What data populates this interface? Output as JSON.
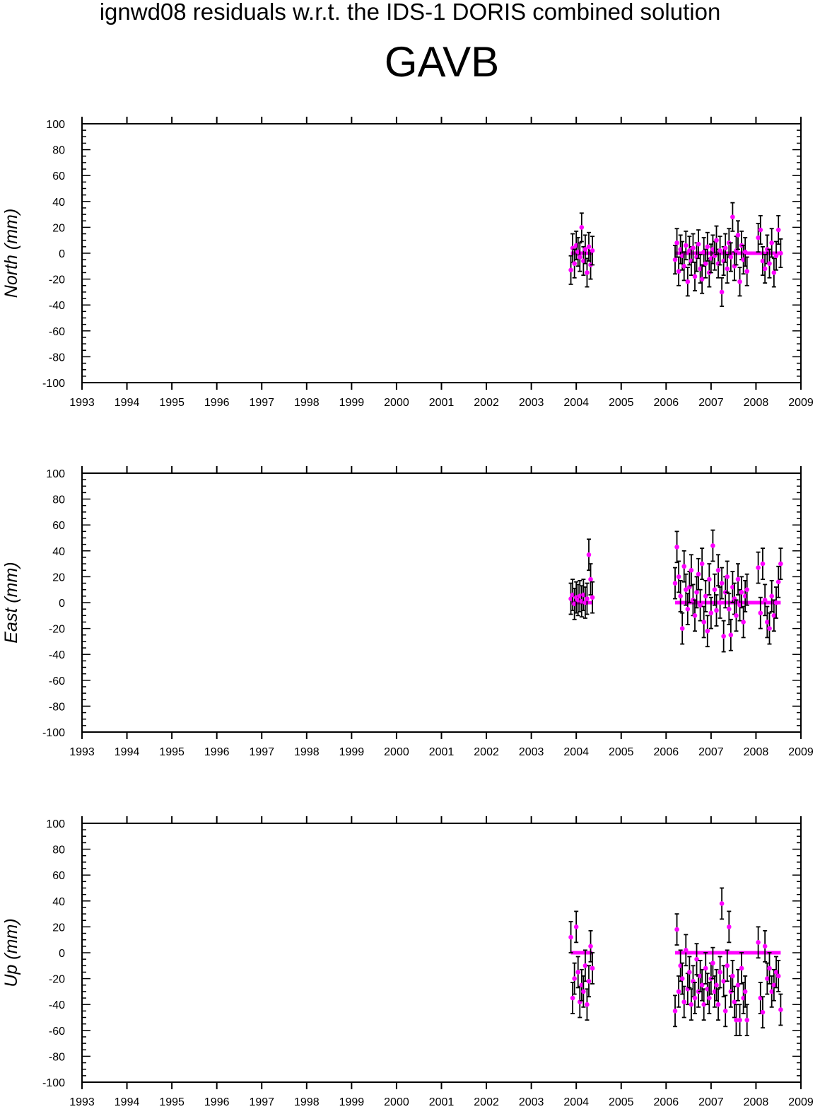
{
  "title": "ignwd08 residuals w.r.t. the IDS-1 DORIS combined solution",
  "station": "GAVB",
  "colors": {
    "point": "#ff00ff",
    "errorbar": "#000000",
    "axis": "#000000"
  },
  "chart_data": [
    {
      "type": "scatter",
      "name": "north-panel",
      "ylabel": "North (mm)",
      "xlim": [
        1993,
        2009
      ],
      "ylim": [
        -100,
        100
      ],
      "xticks": [
        "1993",
        "1994",
        "1995",
        "1996",
        "1997",
        "1998",
        "1999",
        "2000",
        "2001",
        "2002",
        "2003",
        "2004",
        "2005",
        "2006",
        "2007",
        "2008",
        "2009"
      ],
      "yticks": [
        "100",
        "80",
        "60",
        "40",
        "20",
        "0",
        "-20",
        "-40",
        "-60",
        "-80",
        "-100"
      ],
      "error": 11,
      "x": [
        2003.88,
        2003.92,
        2003.96,
        2004.0,
        2004.04,
        2004.08,
        2004.12,
        2004.16,
        2004.2,
        2004.24,
        2004.28,
        2004.32,
        2004.36,
        2006.2,
        2006.24,
        2006.28,
        2006.32,
        2006.36,
        2006.4,
        2006.44,
        2006.48,
        2006.52,
        2006.56,
        2006.6,
        2006.64,
        2006.68,
        2006.72,
        2006.76,
        2006.8,
        2006.84,
        2006.88,
        2006.92,
        2006.96,
        2007.0,
        2007.04,
        2007.08,
        2007.12,
        2007.16,
        2007.2,
        2007.24,
        2007.28,
        2007.32,
        2007.36,
        2007.4,
        2007.44,
        2007.48,
        2007.52,
        2007.56,
        2007.6,
        2007.64,
        2007.68,
        2007.72,
        2007.76,
        2007.8,
        2008.05,
        2008.1,
        2008.15,
        2008.2,
        2008.25,
        2008.3,
        2008.35,
        2008.4,
        2008.45,
        2008.5,
        2008.55
      ],
      "y": [
        -13,
        4,
        -8,
        6,
        1,
        -3,
        20,
        -6,
        3,
        -15,
        5,
        -9,
        2,
        -5,
        8,
        -14,
        3,
        -2,
        -10,
        6,
        -22,
        2,
        -6,
        4,
        -18,
        -3,
        7,
        -12,
        -20,
        1,
        -8,
        5,
        -15,
        -4,
        3,
        -2,
        10,
        -8,
        2,
        -30,
        -6,
        4,
        -12,
        8,
        -3,
        28,
        -10,
        2,
        14,
        -22,
        6,
        -5,
        1,
        -14,
        12,
        18,
        -6,
        -12,
        3,
        -8,
        8,
        -15,
        -2,
        18,
        0
      ]
    },
    {
      "type": "scatter",
      "name": "east-panel",
      "ylabel": "East (mm)",
      "xlim": [
        1993,
        2009
      ],
      "ylim": [
        -100,
        100
      ],
      "xticks": [
        "1993",
        "1994",
        "1995",
        "1996",
        "1997",
        "1998",
        "1999",
        "2000",
        "2001",
        "2002",
        "2003",
        "2004",
        "2005",
        "2006",
        "2007",
        "2008",
        "2009"
      ],
      "yticks": [
        "100",
        "80",
        "60",
        "40",
        "20",
        "0",
        "-20",
        "-40",
        "-60",
        "-80",
        "-100"
      ],
      "error": 12,
      "x": [
        2003.88,
        2003.92,
        2003.96,
        2004.0,
        2004.04,
        2004.08,
        2004.12,
        2004.16,
        2004.2,
        2004.24,
        2004.28,
        2004.32,
        2004.36,
        2006.2,
        2006.24,
        2006.28,
        2006.32,
        2006.36,
        2006.4,
        2006.44,
        2006.48,
        2006.52,
        2006.56,
        2006.6,
        2006.64,
        2006.68,
        2006.72,
        2006.76,
        2006.8,
        2006.84,
        2006.88,
        2006.92,
        2006.96,
        2007.0,
        2007.04,
        2007.08,
        2007.12,
        2007.16,
        2007.2,
        2007.24,
        2007.28,
        2007.32,
        2007.36,
        2007.4,
        2007.44,
        2007.48,
        2007.52,
        2007.56,
        2007.6,
        2007.64,
        2007.68,
        2007.72,
        2007.76,
        2007.8,
        2008.05,
        2008.1,
        2008.15,
        2008.2,
        2008.25,
        2008.3,
        2008.35,
        2008.4,
        2008.45,
        2008.5,
        2008.55
      ],
      "y": [
        3,
        6,
        -1,
        4,
        2,
        5,
        1,
        6,
        0,
        3,
        37,
        18,
        4,
        15,
        43,
        20,
        5,
        -20,
        28,
        10,
        -5,
        12,
        25,
        2,
        -10,
        8,
        22,
        -2,
        30,
        -15,
        5,
        -22,
        18,
        -8,
        44,
        10,
        -6,
        25,
        0,
        15,
        -26,
        8,
        20,
        -5,
        -25,
        12,
        3,
        -10,
        18,
        -2,
        8,
        -15,
        5,
        10,
        27,
        -8,
        30,
        2,
        -15,
        -20,
        5,
        -10,
        0,
        16,
        30
      ]
    },
    {
      "type": "scatter",
      "name": "up-panel",
      "ylabel": "Up (mm)",
      "xlim": [
        1993,
        2009
      ],
      "ylim": [
        -100,
        100
      ],
      "xticks": [
        "1993",
        "1994",
        "1995",
        "1996",
        "1997",
        "1998",
        "1999",
        "2000",
        "2001",
        "2002",
        "2003",
        "2004",
        "2005",
        "2006",
        "2007",
        "2008",
        "2009"
      ],
      "yticks": [
        "100",
        "80",
        "60",
        "40",
        "20",
        "0",
        "-20",
        "-40",
        "-60",
        "-80",
        "-100"
      ],
      "error": 12,
      "x": [
        2003.88,
        2003.92,
        2003.96,
        2004.0,
        2004.04,
        2004.08,
        2004.12,
        2004.16,
        2004.2,
        2004.24,
        2004.28,
        2004.32,
        2004.36,
        2006.2,
        2006.24,
        2006.28,
        2006.32,
        2006.36,
        2006.4,
        2006.44,
        2006.48,
        2006.52,
        2006.56,
        2006.6,
        2006.64,
        2006.68,
        2006.72,
        2006.76,
        2006.8,
        2006.84,
        2006.88,
        2006.92,
        2006.96,
        2007.0,
        2007.04,
        2007.08,
        2007.12,
        2007.16,
        2007.2,
        2007.24,
        2007.28,
        2007.32,
        2007.36,
        2007.4,
        2007.44,
        2007.48,
        2007.52,
        2007.56,
        2007.6,
        2007.64,
        2007.68,
        2007.72,
        2007.76,
        2007.8,
        2008.05,
        2008.1,
        2008.15,
        2008.2,
        2008.25,
        2008.3,
        2008.35,
        2008.4,
        2008.45,
        2008.5,
        2008.55
      ],
      "y": [
        12,
        -35,
        -20,
        20,
        -15,
        -38,
        -25,
        -30,
        -10,
        -40,
        -22,
        5,
        -12,
        -45,
        18,
        -30,
        -10,
        -20,
        -38,
        2,
        -28,
        -15,
        -40,
        -22,
        -35,
        -5,
        -30,
        -18,
        -25,
        -40,
        -12,
        -28,
        -35,
        -20,
        -8,
        -30,
        -25,
        -40,
        -15,
        38,
        -22,
        -45,
        -10,
        20,
        -30,
        -18,
        -38,
        -52,
        -25,
        -52,
        -12,
        -35,
        -30,
        -52,
        8,
        -35,
        -46,
        5,
        -20,
        -12,
        -30,
        -25,
        -15,
        -18,
        -44
      ]
    }
  ]
}
